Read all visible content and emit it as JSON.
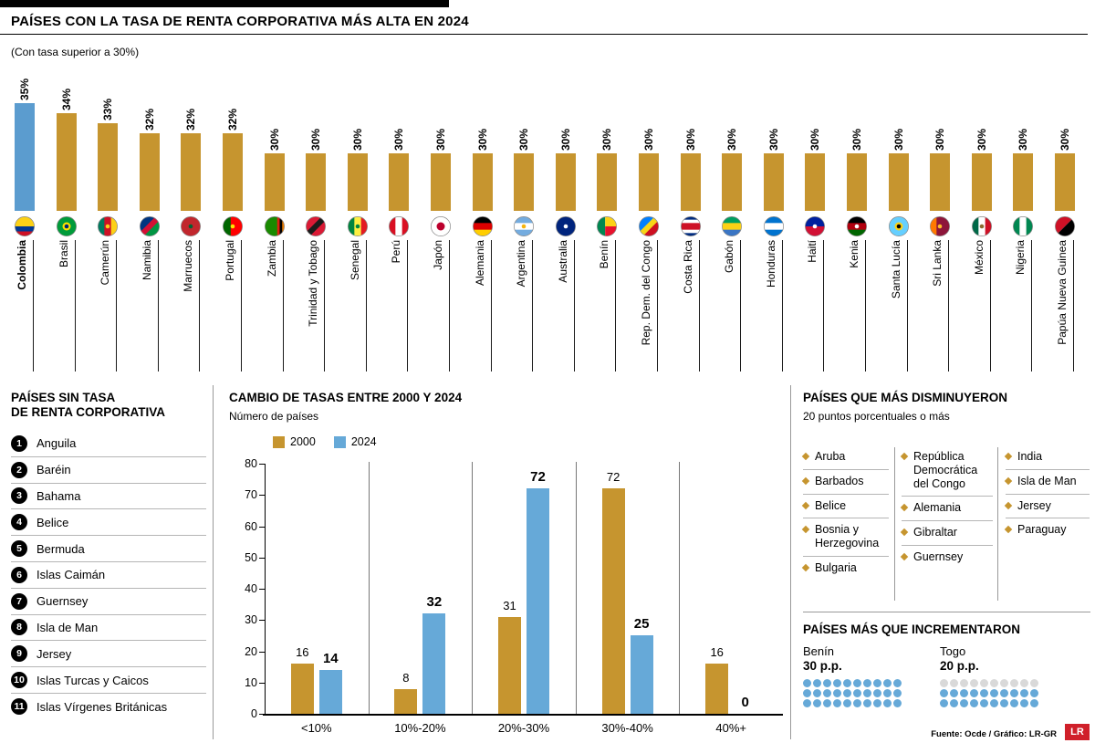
{
  "meta": {
    "source": "Fuente: Ocde / Gráfico: LR-GR",
    "logo": "LR"
  },
  "colors": {
    "gold": "#C6952F",
    "blue": "#66A9D8",
    "highlight_blue": "#5B9CCF",
    "dot_gray": "#D9D9D9",
    "logo_red": "#D0202A",
    "line_gray": "#999999"
  },
  "chart_data": [
    {
      "type": "bar",
      "title": "PAÍSES CON LA TASA DE RENTA CORPORATIVA MÁS ALTA EN 2024",
      "subtitle": "(Con tasa superior a 30%)",
      "categories": [
        "Colombia",
        "Brasil",
        "Camerún",
        "Namibia",
        "Marruecos",
        "Portugal",
        "Zambia",
        "Trinidad y Tobago",
        "Senegal",
        "Perú",
        "Japón",
        "Alemania",
        "Argentina",
        "Australia",
        "Benín",
        "Rep. Dem. del Congo",
        "Costa Rica",
        "Gabón",
        "Honduras",
        "Haití",
        "Kenia",
        "Santa Lucía",
        "Sri Lanka",
        "México",
        "Nigeria",
        "Papúa Nueva Guinea"
      ],
      "values": [
        35,
        34,
        33,
        32,
        32,
        32,
        30,
        30,
        30,
        30,
        30,
        30,
        30,
        30,
        30,
        30,
        30,
        30,
        30,
        30,
        30,
        30,
        30,
        30,
        30,
        30
      ],
      "highlight_index": 0,
      "labels_format": "percent",
      "xlabel": "",
      "ylabel": ""
    },
    {
      "type": "bar",
      "title": "CAMBIO DE TASAS ENTRE 2000 Y 2024",
      "ylabel": "Número de países",
      "categories": [
        "<10%",
        "10%-20%",
        "20%-30%",
        "30%-40%",
        "40%+"
      ],
      "series": [
        {
          "name": "2000",
          "values": [
            16,
            8,
            31,
            72,
            16
          ]
        },
        {
          "name": "2024",
          "values": [
            14,
            32,
            72,
            25,
            0
          ]
        }
      ],
      "ylim": [
        0,
        80
      ],
      "yticks": [
        0,
        10,
        20,
        30,
        40,
        50,
        60,
        70,
        80
      ],
      "legend_position": "top-left",
      "grid": false
    }
  ],
  "top_chart": {
    "flags": [
      {
        "t": "h",
        "c": [
          "#FCD116",
          "#003893",
          "#CE1126"
        ],
        "w": [
          2,
          1,
          1
        ]
      },
      {
        "t": "solid",
        "c": [
          "#009B3A"
        ],
        "dot": "#FEDF00",
        "dot2": "#002776"
      },
      {
        "t": "v",
        "c": [
          "#007A5E",
          "#CE1126",
          "#FCD116"
        ],
        "dot2": "#FCD116"
      },
      {
        "t": "diag",
        "c": [
          "#003580",
          "#D21034",
          "#009543"
        ]
      },
      {
        "t": "solid",
        "c": [
          "#C1272D"
        ],
        "dot2": "#006233"
      },
      {
        "t": "v",
        "c": [
          "#006600",
          "#FF0000"
        ],
        "w": [
          2,
          3
        ],
        "dot2": "#FFE500"
      },
      {
        "t": "v",
        "c": [
          "#198A00",
          "#DE2010",
          "#000000",
          "#EF7D00"
        ],
        "w": [
          5,
          1,
          1,
          1
        ]
      },
      {
        "t": "diag",
        "c": [
          "#DA1A35",
          "#1B1B1B",
          "#DA1A35"
        ]
      },
      {
        "t": "v",
        "c": [
          "#00853F",
          "#FDEF42",
          "#E31B23"
        ],
        "dot2": "#00853F"
      },
      {
        "t": "v",
        "c": [
          "#D91023",
          "#FFFFFF",
          "#D91023"
        ]
      },
      {
        "t": "solid",
        "c": [
          "#FFFFFF"
        ],
        "dot": "#BC002D"
      },
      {
        "t": "h",
        "c": [
          "#000000",
          "#DD0000",
          "#FFCE00"
        ]
      },
      {
        "t": "h",
        "c": [
          "#74ACDF",
          "#FFFFFF",
          "#74ACDF"
        ],
        "dot2": "#F6B40E"
      },
      {
        "t": "solid",
        "c": [
          "#00247D"
        ],
        "dot2": "#FFFFFF"
      },
      {
        "t": "lr",
        "c": [
          "#008751",
          "#FCD116",
          "#E8112D"
        ]
      },
      {
        "t": "diag",
        "c": [
          "#007FFF",
          "#F7D618",
          "#CE1021"
        ]
      },
      {
        "t": "h",
        "c": [
          "#002B7F",
          "#FFFFFF",
          "#CE1126",
          "#FFFFFF",
          "#002B7F"
        ],
        "w": [
          1,
          1,
          2,
          1,
          1
        ]
      },
      {
        "t": "h",
        "c": [
          "#009E60",
          "#FCD116",
          "#3A75C4"
        ]
      },
      {
        "t": "h",
        "c": [
          "#0073CF",
          "#FFFFFF",
          "#0073CF"
        ]
      },
      {
        "t": "h",
        "c": [
          "#00209F",
          "#D21034"
        ],
        "dot2": "#FFFFFF"
      },
      {
        "t": "h",
        "c": [
          "#000000",
          "#B1000E",
          "#006600"
        ],
        "dot2": "#FFFFFF"
      },
      {
        "t": "solid",
        "c": [
          "#65CFFF"
        ],
        "dot": "#FCD116",
        "dot2": "#000000"
      },
      {
        "t": "v",
        "c": [
          "#FF7900",
          "#8D153A"
        ],
        "w": [
          1,
          2
        ],
        "dot2": "#FFBE29"
      },
      {
        "t": "v",
        "c": [
          "#006847",
          "#FFFFFF",
          "#CE1126"
        ],
        "dot2": "#8C6A2F"
      },
      {
        "t": "v",
        "c": [
          "#008751",
          "#FFFFFF",
          "#008751"
        ]
      },
      {
        "t": "diag",
        "c": [
          "#CE1126",
          "#000000"
        ]
      }
    ]
  },
  "no_tax": {
    "title_line1": "PAÍSES SIN TASA",
    "title_line2": "DE RENTA CORPORATIVA",
    "items": [
      "Anguila",
      "Baréin",
      "Bahama",
      "Belice",
      "Bermuda",
      "Islas Caimán",
      "Guernsey",
      "Isla de Man",
      "Jersey",
      "Islas Turcas y Caicos",
      "Islas Vírgenes Británicas"
    ]
  },
  "decreased": {
    "title": "PAÍSES QUE MÁS DISMINUYERON",
    "subtitle": "20 puntos porcentuales o más",
    "columns": [
      [
        "Aruba",
        "Barbados",
        "Belice",
        "Bosnia y Herzegovina",
        "Bulgaria"
      ],
      [
        "República Democrática del Congo",
        "Alemania",
        "Gibraltar",
        "Guernsey"
      ],
      [
        "India",
        "Isla de Man",
        "Jersey",
        "Paraguay"
      ]
    ]
  },
  "increased": {
    "title": "PAÍSES MÁS QUE INCREMENTARON",
    "items": [
      {
        "name": "Benín",
        "pp": "30 p.p.",
        "filled": 30,
        "total": 30
      },
      {
        "name": "Togo",
        "pp": "20 p.p.",
        "filled": 20,
        "total": 30
      }
    ]
  }
}
